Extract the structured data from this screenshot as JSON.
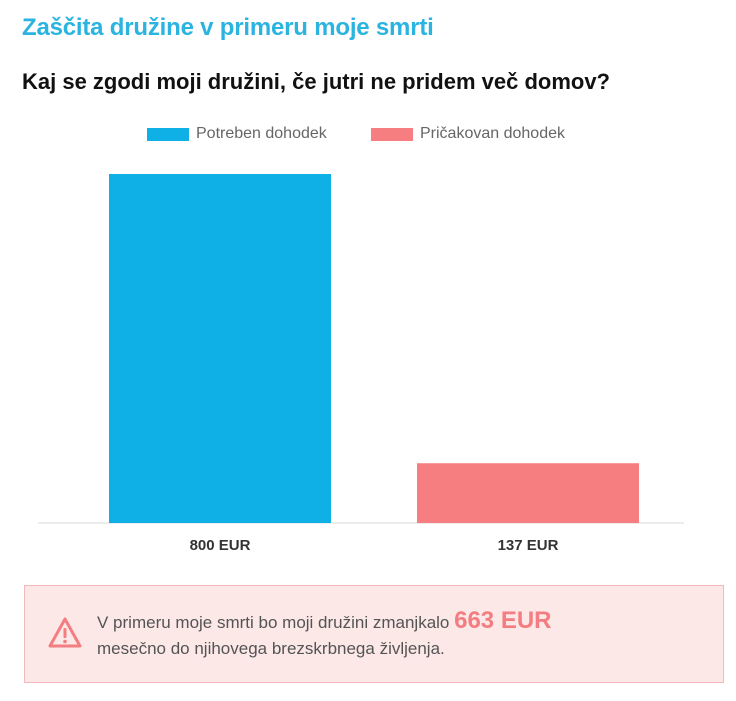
{
  "header": {
    "title": "Zaščita družine v primeru moje smrti",
    "question": "Kaj se zgodi moji družini, če jutri ne pridem več domov?"
  },
  "colors": {
    "title": "#2bb4e0",
    "needed": "#0fb0e6",
    "expected": "#f67e80",
    "alert_bg": "#fde8e8",
    "alert_border": "#f3b9bb",
    "alert_accent": "#f37d80"
  },
  "chart_data": {
    "type": "bar",
    "categories": [
      "800 EUR",
      "137 EUR"
    ],
    "series": [
      {
        "name": "Potreben dohodek",
        "values": [
          800,
          null
        ],
        "color": "#0fb0e6"
      },
      {
        "name": "Pričakovan dohodek",
        "values": [
          null,
          137
        ],
        "color": "#f67e80"
      }
    ],
    "values": [
      800,
      137
    ],
    "unit": "EUR",
    "ylim": [
      0,
      800
    ],
    "grid": false,
    "legend": "top-center",
    "xlabel": "",
    "ylabel": ""
  },
  "alert": {
    "icon": "warning-triangle-icon",
    "text_before": "V primeru moje smrti bo moji družini zmanjkalo ",
    "amount": "663 EUR",
    "text_after": " mesečno do njihovega brezskrbnega življenja."
  }
}
